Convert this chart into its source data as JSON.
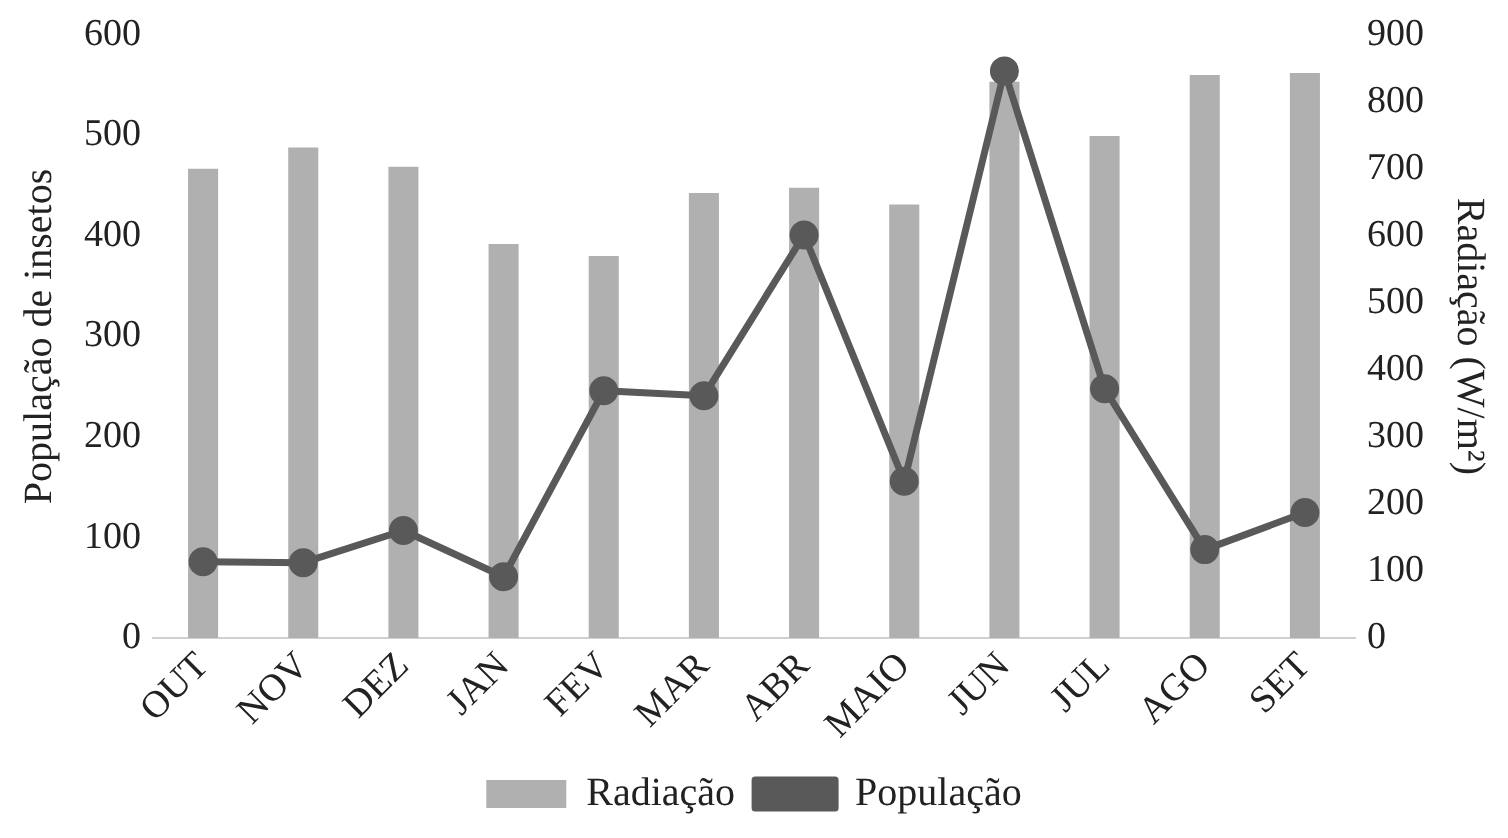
{
  "chart_data": {
    "type": "bar",
    "categories": [
      "OUT",
      "NOV",
      "DEZ",
      "JAN",
      "FEV",
      "MAR",
      "ABR",
      "MAIO",
      "JUN",
      "JUL",
      "AGO",
      "SET"
    ],
    "ylabel": "População de insetos",
    "y2label": "Radiação (W/m²)",
    "ylim": [
      0,
      600
    ],
    "yticks": [
      0,
      100,
      200,
      300,
      400,
      500,
      600
    ],
    "y2lim": [
      0,
      900
    ],
    "y2ticks": [
      0,
      100,
      200,
      300,
      400,
      500,
      600,
      700,
      800,
      900
    ],
    "grid": false,
    "legend": "bottom",
    "marker": "circle",
    "series": [
      {
        "name": "Radiação",
        "axis": "y2",
        "color": "#b0b0b0",
        "values": [
          700,
          732,
          703,
          588,
          570,
          664,
          672,
          647,
          830,
          749,
          840,
          843
        ]
      },
      {
        "name": "População",
        "type": "line",
        "color": "#595959",
        "values": [
          76,
          75,
          107,
          61,
          246,
          241,
          401,
          156,
          564,
          248,
          88,
          125
        ]
      }
    ]
  }
}
